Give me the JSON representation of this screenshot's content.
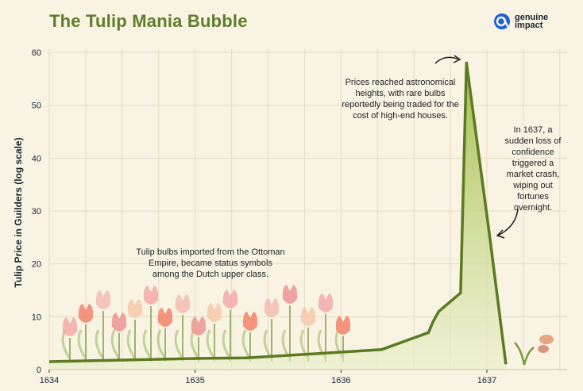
{
  "title": "The Tulip Mania Bubble",
  "brand": {
    "line1": "genuine",
    "line2": "impact",
    "color": "#1f5fd6"
  },
  "annotations": {
    "early": "Tulip bulbs imported from the Ottoman Empire, became status symbols among the Dutch upper class.",
    "peak": "Prices reached astronomical heights, with rare bulbs reportedly being traded for the cost of high-end houses.",
    "crash": "In 1637, a sudden loss of confidence triggered a market crash, wiping out fortunes overnight."
  },
  "colors": {
    "line": "#5b7a22",
    "fill": "#b6cc6a",
    "grid": "#e6dcc2",
    "background": "#f8f3e3",
    "title": "#5e7d2a"
  },
  "chart_data": {
    "type": "area",
    "title": "The Tulip Mania Bubble",
    "xlabel": "",
    "ylabel": "Tulip Price in Guilders (log scale)",
    "x_ticks": [
      "1634",
      "1635",
      "1636",
      "1637"
    ],
    "y_ticks": [
      0,
      10,
      20,
      30,
      40,
      50,
      60
    ],
    "xlim": [
      1634,
      1637.55
    ],
    "ylim": [
      0,
      60
    ],
    "grid": true,
    "series": [
      {
        "x": [
          1634.0,
          1634.5,
          1635.0,
          1635.35,
          1636.0,
          1636.28,
          1636.6,
          1636.63,
          1636.67,
          1636.82,
          1636.86,
          1637.02,
          1637.13
        ],
        "y": [
          1.5,
          1.8,
          2.1,
          2.2,
          3.3,
          3.8,
          7.0,
          9.0,
          11.0,
          14.5,
          58.0,
          25.0,
          1.0
        ]
      }
    ]
  }
}
